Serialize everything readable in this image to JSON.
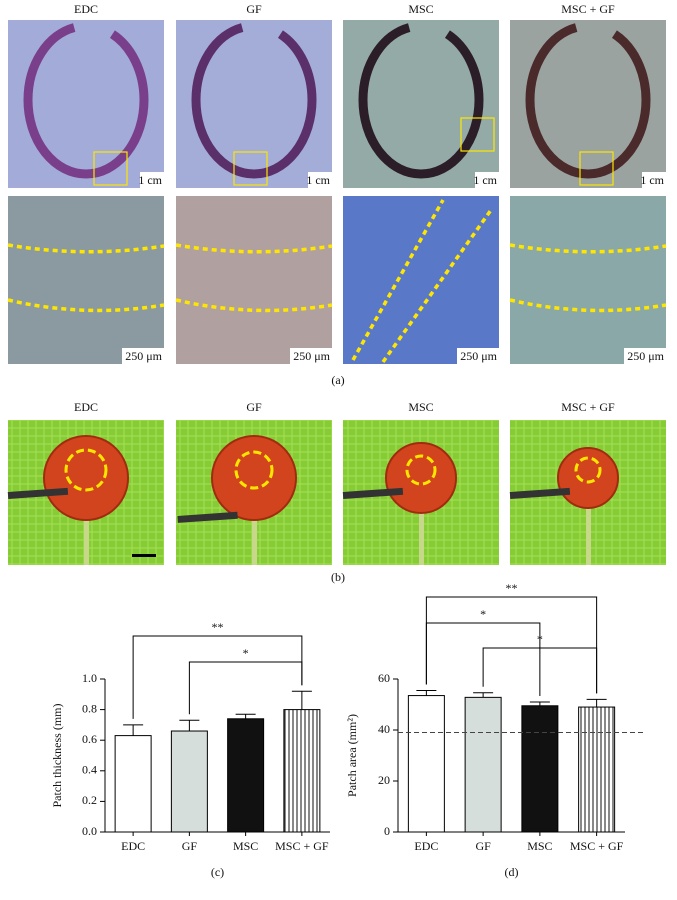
{
  "figure": {
    "panel_a": {
      "columns": [
        "EDC",
        "GF",
        "MSC",
        "MSC + GF"
      ],
      "scale_top": [
        "1 cm",
        "1 cm",
        "1 cm",
        "1 cm"
      ],
      "scale_bottom": [
        "250 μm",
        "250 μm",
        "250 μm",
        "250 μm"
      ],
      "caption": "(a)"
    },
    "panel_b": {
      "columns": [
        "EDC",
        "GF",
        "MSC",
        "MSC + GF"
      ],
      "caption": "(b)"
    }
  },
  "chart_data": [
    {
      "type": "bar",
      "caption": "(c)",
      "y_label": "Patch thickness (mm)",
      "categories": [
        "EDC",
        "GF",
        "MSC",
        "MSC + GF"
      ],
      "values": [
        0.63,
        0.66,
        0.74,
        0.8
      ],
      "errors": [
        0.07,
        0.07,
        0.03,
        0.12
      ],
      "colors": [
        "#ffffff",
        "#d5dedb",
        "#111111",
        "#ffffff"
      ],
      "hatch": [
        false,
        false,
        false,
        true
      ],
      "ylim": [
        0,
        1.0
      ],
      "yticks": [
        {
          "value": 0,
          "label": "0.0"
        },
        0.2,
        0.4,
        0.6,
        0.8,
        {
          "value": 1,
          "label": "1.0"
        }
      ],
      "significance": [
        "**",
        "*"
      ]
    },
    {
      "type": "bar",
      "caption": "(d)",
      "y_label": "Patch area (mm²)",
      "categories": [
        "EDC",
        "GF",
        "MSC",
        "MSC + GF"
      ],
      "values": [
        53.5,
        52.8,
        49.5,
        49.0
      ],
      "errors": [
        2.0,
        1.8,
        1.5,
        3.0
      ],
      "colors": [
        "#ffffff",
        "#d5dedb",
        "#111111",
        "#ffffff"
      ],
      "hatch": [
        false,
        false,
        false,
        true
      ],
      "ylim": [
        0,
        60
      ],
      "yticks": [
        0,
        20,
        40,
        60
      ],
      "reference_line": 39,
      "significance": [
        "**",
        "*",
        "*"
      ]
    }
  ]
}
